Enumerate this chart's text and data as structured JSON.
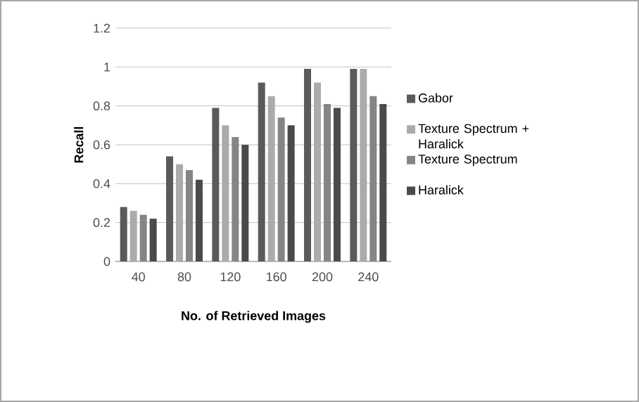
{
  "chart_data": {
    "type": "bar",
    "xlabel": "No. of Retrieved Images",
    "ylabel": "Recall",
    "categories": [
      "40",
      "80",
      "120",
      "160",
      "200",
      "240"
    ],
    "series": [
      {
        "name": "Gabor",
        "color": "#5a5a5a",
        "values": [
          0.28,
          0.54,
          0.79,
          0.92,
          0.99,
          0.99
        ]
      },
      {
        "name": "Texture Spectrum + Haralick",
        "color": "#ababab",
        "values": [
          0.26,
          0.5,
          0.7,
          0.85,
          0.92,
          0.99
        ]
      },
      {
        "name": "Texture Spectrum",
        "color": "#858585",
        "values": [
          0.24,
          0.47,
          0.64,
          0.74,
          0.81,
          0.85
        ]
      },
      {
        "name": "Haralick",
        "color": "#4a4a4a",
        "values": [
          0.22,
          0.42,
          0.6,
          0.7,
          0.79,
          0.81
        ]
      }
    ],
    "ylim": [
      0,
      1.2
    ],
    "yticks": [
      0,
      0.2,
      0.4,
      0.6,
      0.8,
      1,
      1.2
    ],
    "grid": "y",
    "legend": "right"
  }
}
